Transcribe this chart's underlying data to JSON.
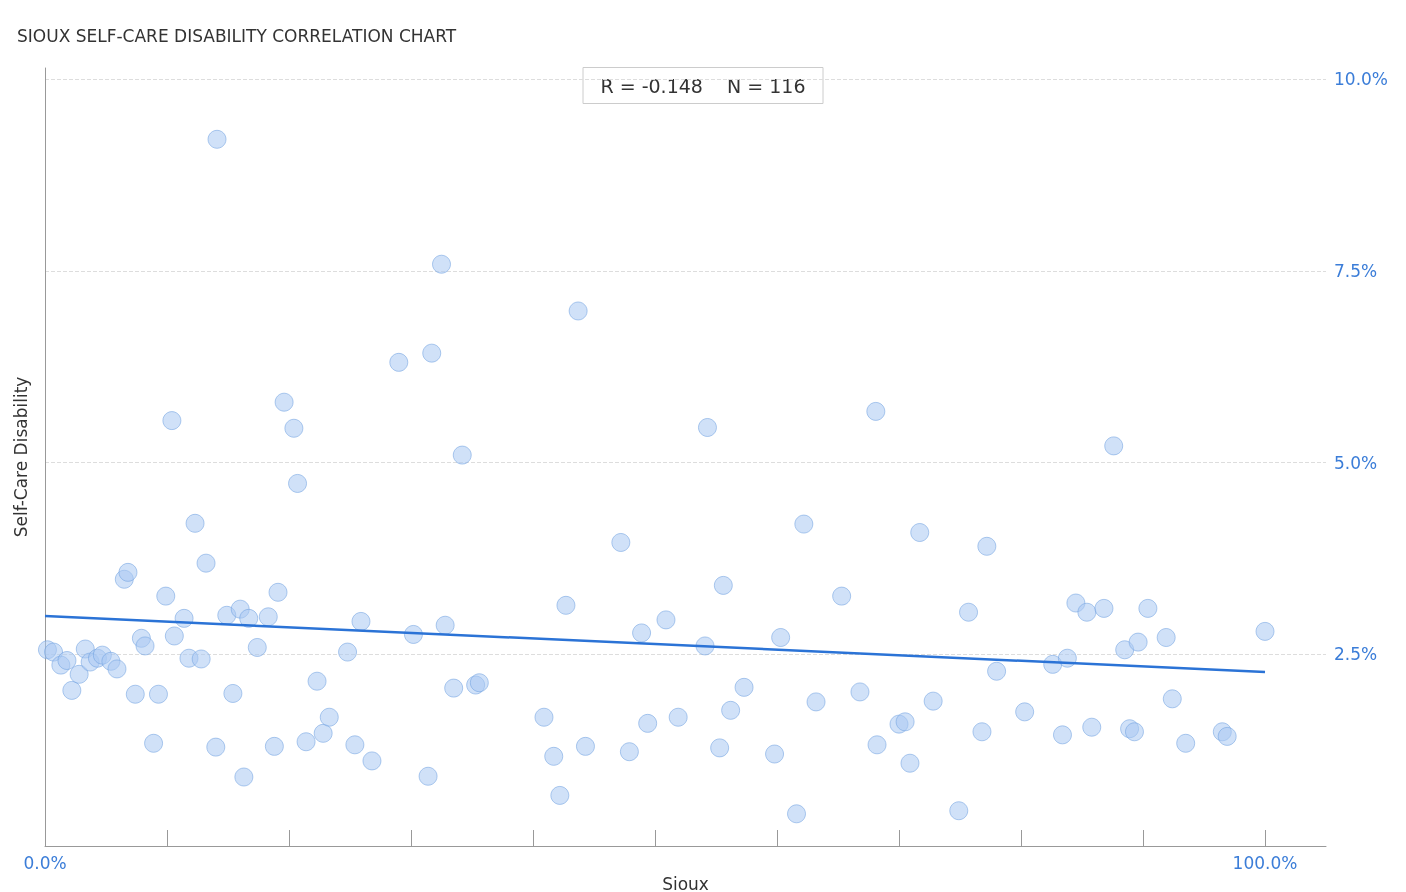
{
  "chart_data": {
    "type": "scatter",
    "title": "SIOUX SELF-CARE DISABILITY CORRELATION CHART",
    "xlabel": "Sioux",
    "ylabel": "Self-Care Disability",
    "annotations": [
      "R = -0.148    N = 116"
    ],
    "series": [
      {
        "color": "#a9c8f2",
        "x": [
          0.2,
          0.7,
          1.3,
          1.8,
          2.2,
          2.8,
          3.3,
          3.7,
          4.3,
          4.7,
          5.4,
          5.9,
          6.5,
          6.8,
          7.4,
          7.9,
          8.2,
          8.9,
          9.3,
          9.9,
          10.4,
          10.6,
          11.4,
          11.8,
          12.3,
          12.8,
          13.2,
          14.0,
          14.1,
          14.9,
          15.4,
          16.0,
          16.3,
          16.7,
          17.4,
          18.3,
          18.8,
          19.1,
          19.6,
          20.4,
          20.7,
          21.4,
          22.3,
          22.8,
          23.3,
          24.8,
          25.4,
          25.9,
          26.8,
          29.0,
          30.2,
          31.4,
          31.7,
          32.5,
          32.8,
          33.5,
          34.2,
          35.3,
          35.6,
          40.9,
          41.7,
          42.2,
          42.7,
          43.7,
          44.3,
          47.2,
          47.9,
          48.9,
          49.4,
          50.9,
          51.9,
          54.1,
          54.3,
          55.3,
          55.6,
          56.2,
          57.3,
          59.8,
          60.3,
          61.6,
          62.2,
          63.2,
          65.3,
          66.8,
          68.1,
          68.2,
          70.0,
          70.5,
          70.9,
          71.7,
          72.8,
          74.9,
          75.7,
          76.8,
          77.2,
          78.0,
          80.3,
          82.6,
          83.4,
          83.8,
          84.5,
          85.4,
          85.8,
          86.8,
          87.6,
          88.5,
          88.9,
          89.3,
          89.6,
          90.4,
          91.9,
          92.4,
          93.5,
          96.5,
          96.9,
          100.0
        ],
        "values": [
          2.56,
          2.53,
          2.36,
          2.42,
          2.03,
          2.24,
          2.57,
          2.4,
          2.45,
          2.49,
          2.41,
          2.31,
          3.48,
          3.57,
          1.98,
          2.71,
          2.61,
          1.34,
          1.98,
          3.26,
          5.55,
          2.74,
          2.97,
          2.45,
          4.21,
          2.44,
          3.69,
          1.29,
          9.22,
          3.01,
          1.99,
          3.09,
          0.9,
          2.97,
          2.59,
          2.99,
          1.3,
          3.31,
          5.79,
          5.45,
          4.73,
          1.36,
          2.15,
          1.47,
          1.68,
          2.53,
          1.32,
          2.93,
          1.11,
          6.31,
          2.76,
          0.91,
          6.43,
          7.59,
          2.88,
          2.06,
          5.1,
          2.1,
          2.13,
          1.68,
          1.17,
          0.66,
          3.14,
          6.98,
          1.3,
          3.96,
          1.23,
          2.78,
          1.6,
          2.95,
          1.68,
          2.61,
          5.46,
          1.28,
          3.4,
          1.77,
          2.07,
          1.2,
          2.72,
          0.42,
          4.2,
          1.88,
          3.26,
          2.01,
          5.67,
          1.32,
          1.59,
          1.62,
          1.08,
          4.09,
          1.89,
          0.46,
          3.05,
          1.49,
          3.91,
          2.28,
          1.75,
          2.37,
          1.45,
          2.45,
          3.17,
          3.05,
          1.55,
          3.1,
          5.22,
          2.56,
          1.53,
          1.49,
          2.66,
          3.1,
          2.72,
          1.92,
          1.34,
          1.49,
          1.43,
          2.8
        ]
      },
      {
        "type": "line",
        "color": "#2b73d6",
        "x": [
          0,
          100
        ],
        "values": [
          3.0,
          2.27
        ]
      }
    ],
    "xlim": [
      0,
      105
    ],
    "ylim": [
      0,
      10.15
    ],
    "xticks": [
      {
        "value": 0,
        "label": "0.0%"
      },
      {
        "value": 10,
        "label": null
      },
      {
        "value": 20,
        "label": null
      },
      {
        "value": 30,
        "label": null
      },
      {
        "value": 40,
        "label": null
      },
      {
        "value": 50,
        "label": null
      },
      {
        "value": 60,
        "label": null
      },
      {
        "value": 70,
        "label": null
      },
      {
        "value": 80,
        "label": null
      },
      {
        "value": 90,
        "label": null
      },
      {
        "value": 100,
        "label": "100.0%"
      }
    ],
    "yticks": [
      {
        "value": 2.5,
        "label": "2.5%"
      },
      {
        "value": 5,
        "label": "5.0%"
      },
      {
        "value": 7.5,
        "label": "7.5%"
      },
      {
        "value": 10,
        "label": "10.0%"
      }
    ],
    "grid": "y"
  }
}
